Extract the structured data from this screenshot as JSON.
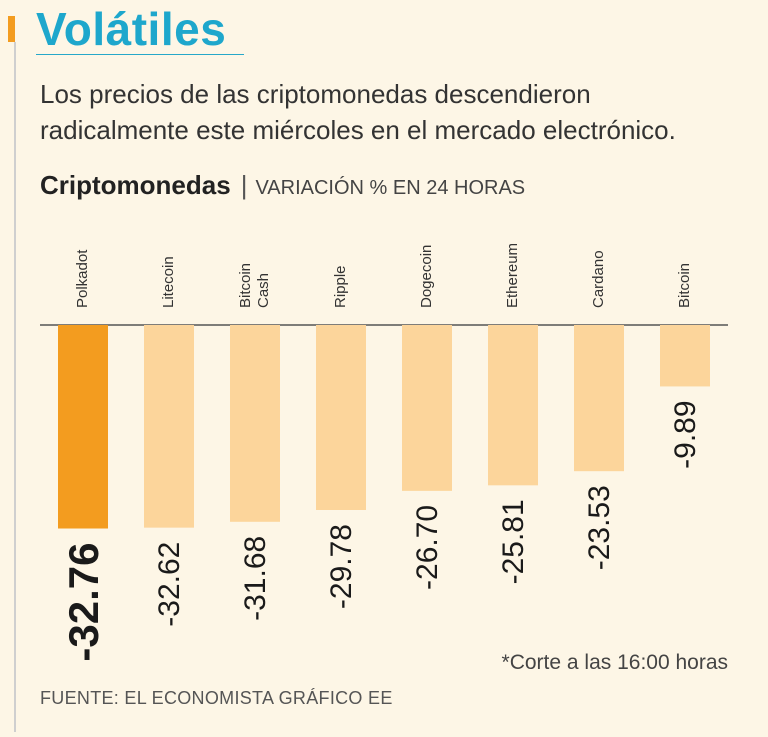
{
  "header": {
    "title": "Volátiles",
    "subtitle_line1": "Los precios de las criptomonedas descendieron",
    "subtitle_line2": "radicalmente este miércoles en el mercado electrónico.",
    "chart_title": "Criptomonedas",
    "chart_subtitle": "VARIACIÓN % EN 24 HORAS"
  },
  "footer": {
    "note": "*Corte a las 16:00 horas",
    "source": "FUENTE: EL ECONOMISTA GRÁFICO EE"
  },
  "colors": {
    "highlight": "#f39c1f",
    "bar": "#fcd59b",
    "title": "#1ea7cc"
  },
  "chart_data": {
    "type": "bar",
    "title": "Criptomonedas",
    "subtitle": "VARIACIÓN % EN 24 HORAS",
    "categories": [
      [
        "Polkadot"
      ],
      [
        "Litecoin"
      ],
      [
        "Bitcoin",
        "Cash"
      ],
      [
        "Ripple"
      ],
      [
        "Dogecoin"
      ],
      [
        "Ethereum"
      ],
      [
        "Cardano"
      ],
      [
        "Bitcoin"
      ]
    ],
    "values": [
      -32.76,
      -32.62,
      -31.68,
      -29.78,
      -26.7,
      -25.81,
      -23.53,
      -9.89
    ],
    "value_labels": [
      "-32.76",
      "-32.62",
      "-31.68",
      "-29.78",
      "-26.70",
      "-25.81",
      "-23.53",
      "-9.89"
    ],
    "highlight_index": 0,
    "ylim": [
      -33,
      0
    ],
    "xlabel": "",
    "ylabel": ""
  }
}
